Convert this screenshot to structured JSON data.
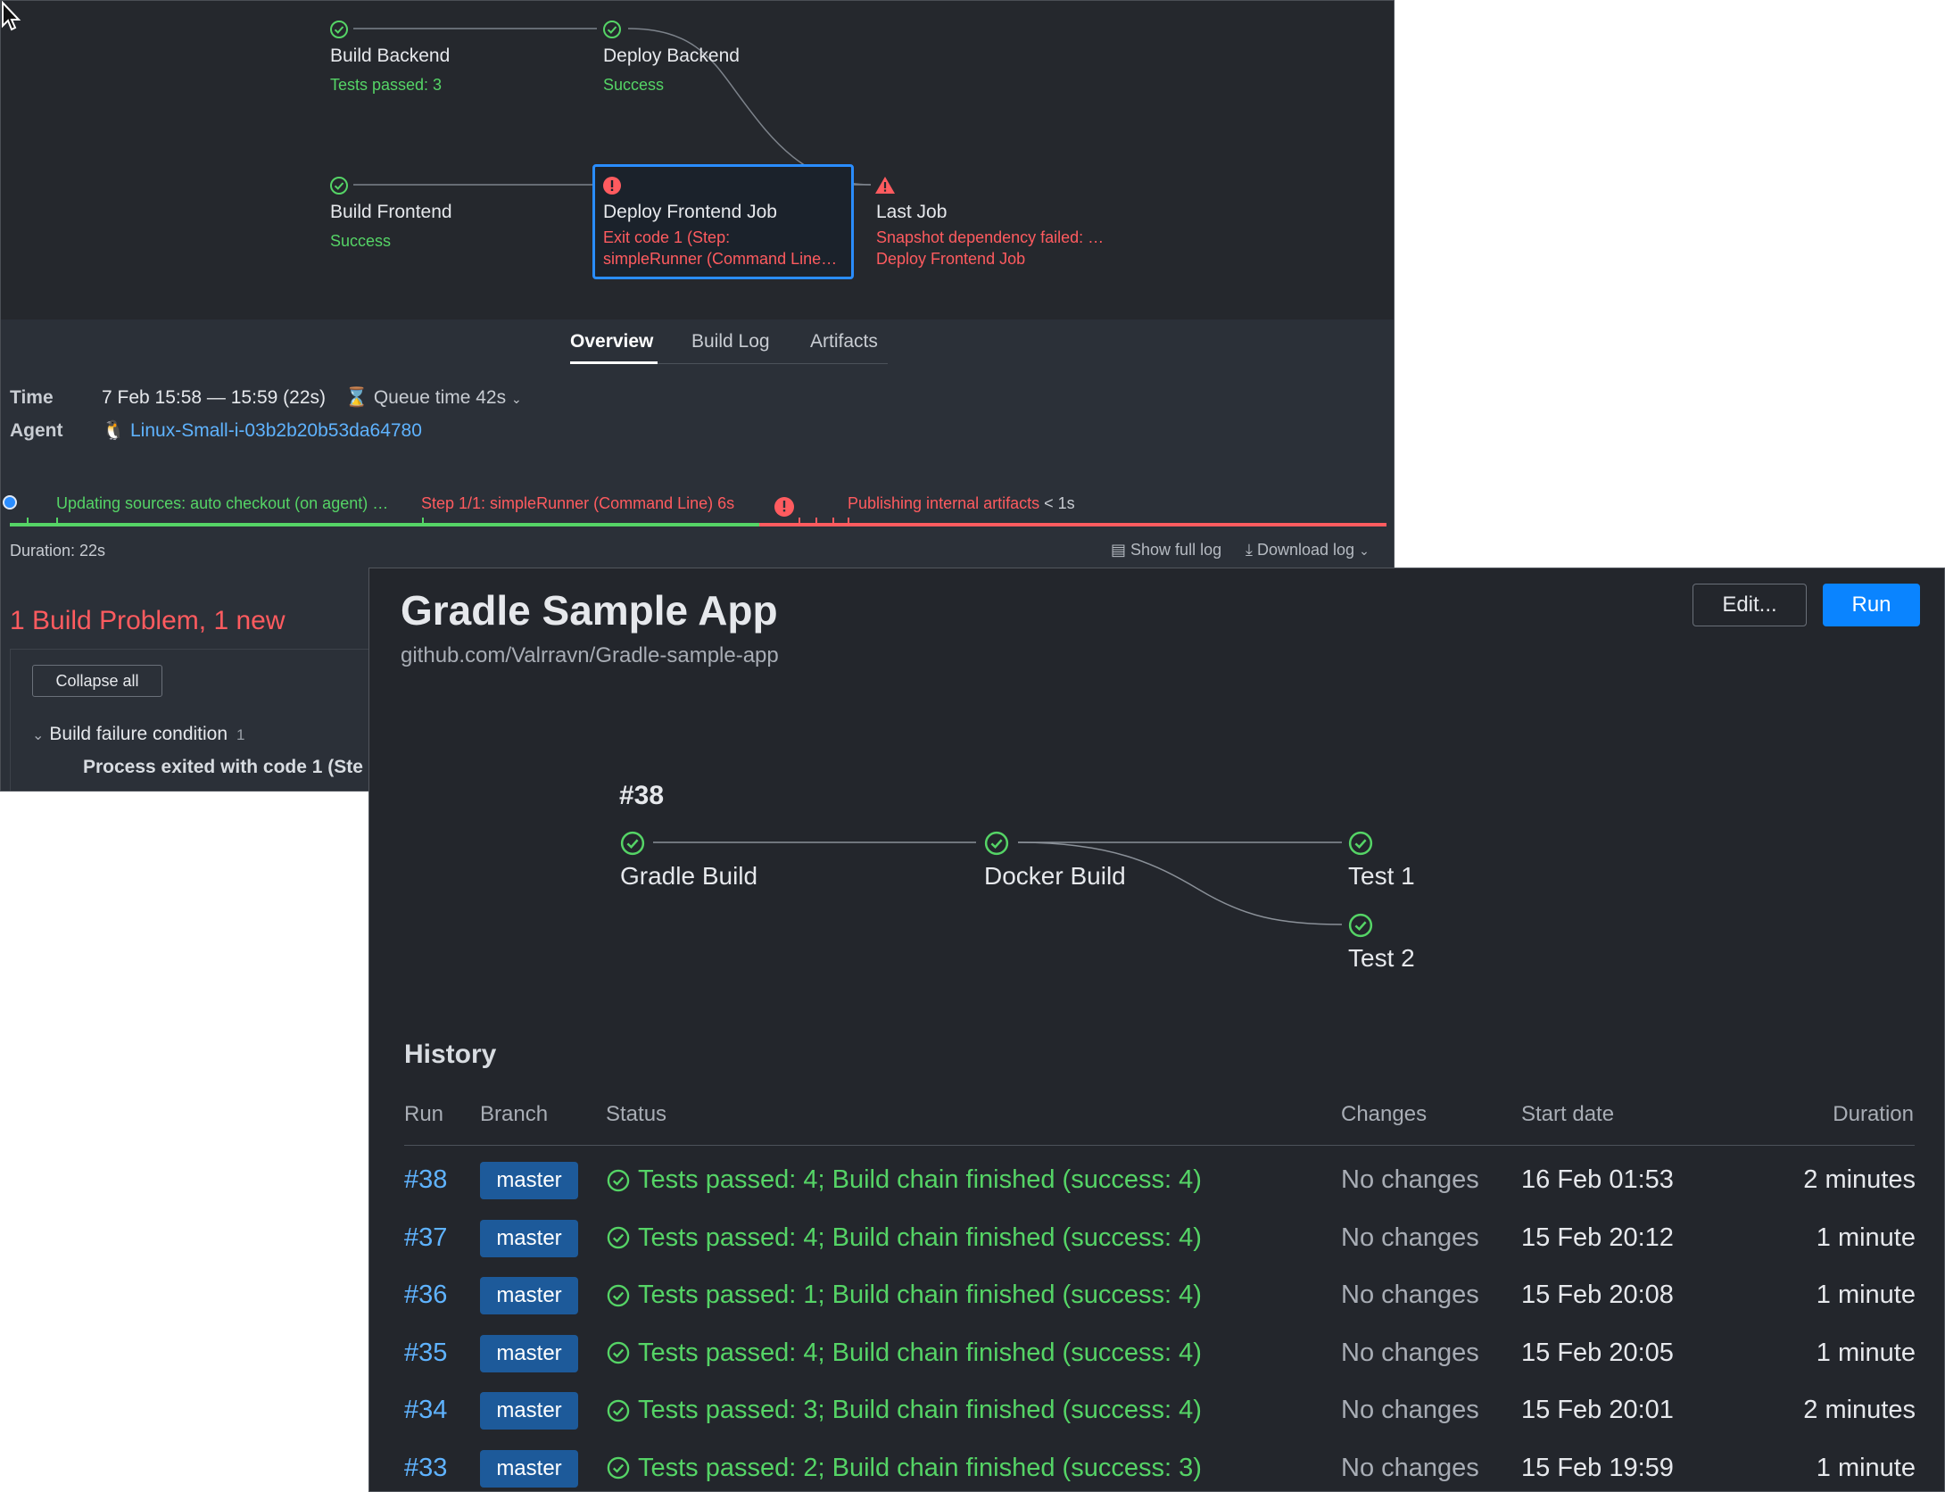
{
  "back": {
    "nodes": {
      "build_backend": {
        "name": "Build Backend",
        "sub": "Tests passed: 3"
      },
      "deploy_backend": {
        "name": "Deploy Backend",
        "sub": "Success"
      },
      "build_frontend": {
        "name": "Build Frontend",
        "sub": "Success"
      },
      "deploy_frontend": {
        "name": "Deploy Frontend Job",
        "sub1": "Exit code 1 (Step:",
        "sub2": "simpleRunner (Command Line…"
      },
      "last_job": {
        "name": "Last Job",
        "sub1": "Snapshot dependency failed: …",
        "sub2": "Deploy Frontend Job"
      }
    },
    "tabs": [
      "Overview",
      "Build Log",
      "Artifacts"
    ],
    "meta": {
      "time_label": "Time",
      "time_value": "7 Feb 15:58 — 15:59 (22s)",
      "queue": "Queue time 42s",
      "agent_label": "Agent",
      "agent_value": "Linux-Small-i-03b2b20b53da64780"
    },
    "steps": {
      "s1": "Updating sources: auto checkout (on agent) …",
      "s2": "Step 1/1: simpleRunner (Command Line) 6s",
      "s3": "Publishing internal artifacts",
      "s3_time": "< 1s"
    },
    "duration": "Duration: 22s",
    "show_full_log": "Show full log",
    "download_log": "Download log",
    "problems_title": "1 Build Problem, 1 new",
    "collapse_all": "Collapse all",
    "failure_condition": "Build failure condition",
    "failure_count": "1",
    "process_exit": "Process exited with code 1 (Ste"
  },
  "front": {
    "title": "Gradle Sample App",
    "repo": "github.com/Valrravn/Gradle-sample-app",
    "edit_label": "Edit...",
    "run_label": "Run",
    "build_number": "#38",
    "nodes": {
      "gradle": "Gradle Build",
      "docker": "Docker Build",
      "test1": "Test 1",
      "test2": "Test 2"
    },
    "history_title": "History",
    "columns": {
      "run": "Run",
      "branch": "Branch",
      "status": "Status",
      "changes": "Changes",
      "start": "Start date",
      "duration": "Duration"
    },
    "rows": [
      {
        "run": "#38",
        "branch": "master",
        "status": "Tests passed: 4; Build chain finished (success: 4)",
        "changes": "No changes",
        "start": "16 Feb 01:53",
        "duration": "2 minutes"
      },
      {
        "run": "#37",
        "branch": "master",
        "status": "Tests passed: 4; Build chain finished (success: 4)",
        "changes": "No changes",
        "start": "15 Feb 20:12",
        "duration": "1 minute"
      },
      {
        "run": "#36",
        "branch": "master",
        "status": "Tests passed: 1; Build chain finished (success: 4)",
        "changes": "No changes",
        "start": "15 Feb 20:08",
        "duration": "1 minute"
      },
      {
        "run": "#35",
        "branch": "master",
        "status": "Tests passed: 4; Build chain finished (success: 4)",
        "changes": "No changes",
        "start": "15 Feb 20:05",
        "duration": "1 minute"
      },
      {
        "run": "#34",
        "branch": "master",
        "status": "Tests passed: 3; Build chain finished (success: 4)",
        "changes": "No changes",
        "start": "15 Feb 20:01",
        "duration": "2 minutes"
      },
      {
        "run": "#33",
        "branch": "master",
        "status": "Tests passed: 2; Build chain finished (success: 3)",
        "changes": "No changes",
        "start": "15 Feb 19:59",
        "duration": "1 minute"
      }
    ]
  },
  "colors": {
    "success": "#55d466",
    "error": "#ff5b5f",
    "accent": "#0a84ff",
    "link": "#5fb3ff"
  }
}
